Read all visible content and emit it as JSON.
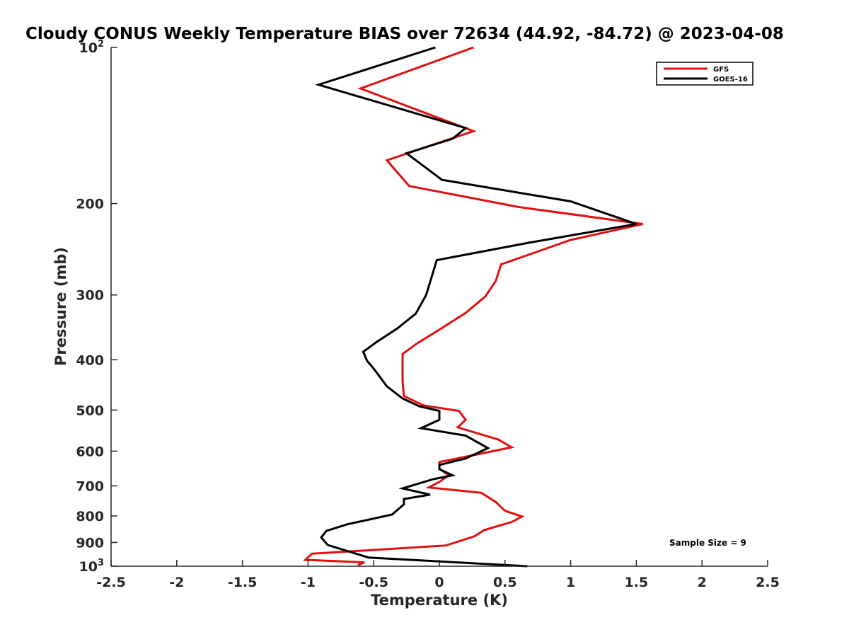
{
  "chart_data": {
    "type": "line",
    "title": "Cloudy CONUS Weekly Temperature BIAS over 72634 (44.92, -84.72) @ 2023-04-08",
    "xlabel": "Temperature (K)",
    "ylabel": "Pressure (mb)",
    "xlim": [
      -2.5,
      2.5
    ],
    "ylim": [
      100,
      1000
    ],
    "y_scale": "log",
    "y_reversed": true,
    "grid": false,
    "legend_position": "top-right",
    "x_ticks": [
      "-2.5",
      "-2",
      "-1.5",
      "-1",
      "-0.5",
      "0",
      "0.5",
      "1",
      "1.5",
      "2",
      "2.5"
    ],
    "y_ticks": [
      {
        "value": 100,
        "base": "10",
        "exp": "2"
      },
      {
        "value": 200,
        "label": "200"
      },
      {
        "value": 300,
        "label": "300"
      },
      {
        "value": 400,
        "label": "400"
      },
      {
        "value": 500,
        "label": "500"
      },
      {
        "value": 600,
        "label": "600"
      },
      {
        "value": 700,
        "label": "700"
      },
      {
        "value": 800,
        "label": "800"
      },
      {
        "value": 900,
        "label": "900"
      },
      {
        "value": 1000,
        "base": "10",
        "exp": "3"
      }
    ],
    "annotation": "Sample Size = 9",
    "series": [
      {
        "name": "GFS",
        "color": "#e01010",
        "points": [
          [
            0.26,
            100
          ],
          [
            -0.6,
            120
          ],
          [
            0.26,
            145
          ],
          [
            -0.4,
            165
          ],
          [
            -0.23,
            185
          ],
          [
            0.6,
            203
          ],
          [
            1.55,
            219
          ],
          [
            1.0,
            235
          ],
          [
            0.47,
            262
          ],
          [
            0.43,
            282
          ],
          [
            0.35,
            302
          ],
          [
            0.2,
            325
          ],
          [
            0.0,
            350
          ],
          [
            -0.17,
            372
          ],
          [
            -0.28,
            390
          ],
          [
            -0.28,
            410
          ],
          [
            -0.28,
            440
          ],
          [
            -0.27,
            470
          ],
          [
            -0.12,
            490
          ],
          [
            0.15,
            502
          ],
          [
            0.2,
            522
          ],
          [
            0.14,
            540
          ],
          [
            0.45,
            570
          ],
          [
            0.55,
            590
          ],
          [
            0.0,
            630
          ],
          [
            0.0,
            648
          ],
          [
            0.07,
            668
          ],
          [
            0.0,
            688
          ],
          [
            -0.08,
            705
          ],
          [
            0.32,
            722
          ],
          [
            0.43,
            752
          ],
          [
            0.5,
            782
          ],
          [
            0.63,
            802
          ],
          [
            0.55,
            822
          ],
          [
            0.34,
            852
          ],
          [
            0.27,
            875
          ],
          [
            0.05,
            912
          ],
          [
            -0.97,
            946
          ],
          [
            -1.02,
            972
          ],
          [
            -0.57,
            983
          ],
          [
            -0.62,
            995
          ]
        ]
      },
      {
        "name": "GOES-16",
        "color": "#000000",
        "points": [
          [
            -0.03,
            100
          ],
          [
            -0.92,
            118
          ],
          [
            0.2,
            143
          ],
          [
            0.1,
            150
          ],
          [
            -0.25,
            160
          ],
          [
            0.02,
            180
          ],
          [
            1.0,
            198
          ],
          [
            1.5,
            219
          ],
          [
            0.68,
            238
          ],
          [
            -0.02,
            257
          ],
          [
            -0.1,
            300
          ],
          [
            -0.18,
            326
          ],
          [
            -0.32,
            348
          ],
          [
            -0.48,
            370
          ],
          [
            -0.58,
            386
          ],
          [
            -0.55,
            402
          ],
          [
            -0.5,
            416
          ],
          [
            -0.4,
            450
          ],
          [
            -0.28,
            475
          ],
          [
            -0.15,
            492
          ],
          [
            0.0,
            502
          ],
          [
            0.0,
            522
          ],
          [
            -0.14,
            542
          ],
          [
            0.2,
            560
          ],
          [
            0.37,
            592
          ],
          [
            0.2,
            620
          ],
          [
            0.0,
            638
          ],
          [
            0.0,
            650
          ],
          [
            0.1,
            668
          ],
          [
            -0.05,
            680
          ],
          [
            -0.28,
            708
          ],
          [
            -0.07,
            728
          ],
          [
            -0.27,
            742
          ],
          [
            -0.27,
            760
          ],
          [
            -0.36,
            795
          ],
          [
            -0.7,
            830
          ],
          [
            -0.86,
            855
          ],
          [
            -0.9,
            880
          ],
          [
            -0.85,
            910
          ],
          [
            -0.54,
            962
          ],
          [
            0.67,
            1000
          ]
        ]
      }
    ]
  }
}
